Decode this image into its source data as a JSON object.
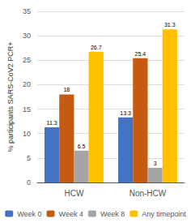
{
  "chart_data": {
    "type": "bar",
    "categories": [
      "HCW",
      "Non-HCW"
    ],
    "series": [
      {
        "name": "Week 0",
        "color": "#4472C4",
        "values": [
          11.3,
          13.3
        ]
      },
      {
        "name": "Week 4",
        "color": "#C55A11",
        "values": [
          18.0,
          25.4
        ]
      },
      {
        "name": "Week 8",
        "color": "#A5A5A5",
        "values": [
          6.5,
          3.0
        ]
      },
      {
        "name": "Any timepoint",
        "color": "#FFC000",
        "values": [
          26.7,
          31.3
        ]
      }
    ],
    "ylabel": "% participants SARS-CoV2 PCR+",
    "ylim": [
      0,
      35
    ],
    "yticks": [
      0,
      5,
      10,
      15,
      20,
      25,
      30,
      35
    ],
    "grid": true,
    "legend": "bottom",
    "data_labels": true
  }
}
